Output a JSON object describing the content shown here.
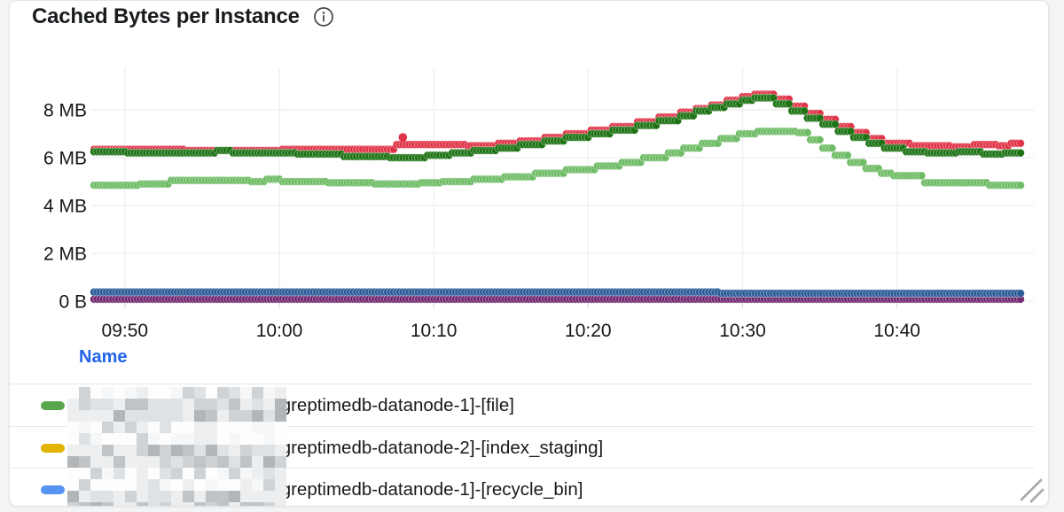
{
  "panel": {
    "title": "Cached Bytes per Instance"
  },
  "chart_data": {
    "type": "scatter",
    "title": "Cached Bytes per Instance",
    "unit": "bytes",
    "grid": true,
    "ylim_mb": [
      0,
      9.8
    ],
    "x_range": {
      "start": "09:48",
      "end": "10:48"
    },
    "y_axis": {
      "ticks": [
        {
          "v": 0,
          "label": "0 B"
        },
        {
          "v": 2,
          "label": "2 MB"
        },
        {
          "v": 4,
          "label": "4 MB"
        },
        {
          "v": 6,
          "label": "6 MB"
        },
        {
          "v": 8,
          "label": "8 MB"
        }
      ]
    },
    "x_axis": {
      "ticks": [
        {
          "t": 2,
          "label": "09:50"
        },
        {
          "t": 12,
          "label": "10:00"
        },
        {
          "t": 22,
          "label": "10:10"
        },
        {
          "t": 32,
          "label": "10:20"
        },
        {
          "t": 42,
          "label": "10:30"
        },
        {
          "t": 52,
          "label": "10:40"
        }
      ]
    },
    "series": [
      {
        "id": "series-red",
        "color": "#e03448",
        "points_min_mb": [
          [
            0,
            6.35
          ],
          [
            6,
            6.3
          ],
          [
            12,
            6.35
          ],
          [
            19.5,
            6.55
          ],
          [
            24,
            6.5
          ],
          [
            26,
            6.6
          ],
          [
            27.5,
            6.7
          ],
          [
            29,
            6.85
          ],
          [
            30.5,
            7.0
          ],
          [
            32,
            7.15
          ],
          [
            33.5,
            7.3
          ],
          [
            35,
            7.5
          ],
          [
            36.5,
            7.7
          ],
          [
            38,
            7.9
          ],
          [
            39,
            8.05
          ],
          [
            40,
            8.2
          ],
          [
            41,
            8.4
          ],
          [
            42,
            8.55
          ],
          [
            42.8,
            8.65
          ],
          [
            44.2,
            8.45
          ],
          [
            45.2,
            8.15
          ],
          [
            46.2,
            7.85
          ],
          [
            47.2,
            7.6
          ],
          [
            48.2,
            7.3
          ],
          [
            49.2,
            7.05
          ],
          [
            50.2,
            6.8
          ],
          [
            51.2,
            6.6
          ],
          [
            53,
            6.5
          ],
          [
            55.5,
            6.45
          ],
          [
            57,
            6.55
          ],
          [
            58.5,
            6.5
          ],
          [
            59.3,
            6.6
          ]
        ]
      },
      {
        "id": "series-dark-green",
        "color": "#1e7315",
        "points_min_mb": [
          [
            0,
            6.25
          ],
          [
            2,
            6.2
          ],
          [
            8,
            6.3
          ],
          [
            9,
            6.2
          ],
          [
            13,
            6.15
          ],
          [
            16,
            6.05
          ],
          [
            19,
            6.0
          ],
          [
            21.5,
            6.1
          ],
          [
            23,
            6.2
          ],
          [
            24.5,
            6.3
          ],
          [
            26,
            6.4
          ],
          [
            27.5,
            6.55
          ],
          [
            29,
            6.7
          ],
          [
            30.5,
            6.85
          ],
          [
            32,
            7.0
          ],
          [
            33.5,
            7.15
          ],
          [
            35,
            7.35
          ],
          [
            36.5,
            7.55
          ],
          [
            38,
            7.75
          ],
          [
            39,
            7.95
          ],
          [
            40,
            8.1
          ],
          [
            41,
            8.25
          ],
          [
            42,
            8.4
          ],
          [
            42.8,
            8.5
          ],
          [
            44.2,
            8.25
          ],
          [
            45.2,
            7.95
          ],
          [
            46.2,
            7.65
          ],
          [
            47.2,
            7.4
          ],
          [
            48.2,
            7.1
          ],
          [
            49.2,
            6.85
          ],
          [
            50.2,
            6.6
          ],
          [
            51.2,
            6.4
          ],
          [
            52.5,
            6.25
          ],
          [
            54,
            6.2
          ],
          [
            56,
            6.25
          ],
          [
            57.5,
            6.15
          ],
          [
            59,
            6.2
          ]
        ]
      },
      {
        "id": "series-light-green",
        "color": "#6fbc66",
        "points_min_mb": [
          [
            0,
            4.85
          ],
          [
            3,
            4.9
          ],
          [
            5,
            5.05
          ],
          [
            10,
            5.0
          ],
          [
            11,
            5.1
          ],
          [
            12,
            5.0
          ],
          [
            15,
            4.95
          ],
          [
            18,
            4.9
          ],
          [
            21,
            4.95
          ],
          [
            22.5,
            5.0
          ],
          [
            24.5,
            5.1
          ],
          [
            26.5,
            5.2
          ],
          [
            28.5,
            5.35
          ],
          [
            30.5,
            5.5
          ],
          [
            32.5,
            5.65
          ],
          [
            34,
            5.8
          ],
          [
            35.5,
            6.0
          ],
          [
            37,
            6.2
          ],
          [
            38.2,
            6.4
          ],
          [
            39.4,
            6.6
          ],
          [
            40.6,
            6.8
          ],
          [
            41.8,
            7.0
          ],
          [
            43,
            7.1
          ],
          [
            45.5,
            7.05
          ],
          [
            46.3,
            6.75
          ],
          [
            47.1,
            6.4
          ],
          [
            48,
            6.1
          ],
          [
            49,
            5.8
          ],
          [
            50,
            5.55
          ],
          [
            51,
            5.35
          ],
          [
            51.8,
            5.25
          ],
          [
            53.8,
            4.95
          ],
          [
            58,
            4.85
          ]
        ]
      },
      {
        "id": "series-purple",
        "color": "#732a72",
        "points_min_mb": [
          [
            0,
            0.08
          ]
        ]
      },
      {
        "id": "series-dark-blue",
        "color": "#2b5c97",
        "points_min_mb": [
          [
            0,
            0.38
          ],
          [
            40,
            0.38
          ],
          [
            40.5,
            0.33
          ]
        ]
      }
    ],
    "outliers": [
      {
        "series": "series-red",
        "t": 20,
        "v": 6.85
      }
    ]
  },
  "legend": {
    "header": "Name",
    "header_color": "#1f63e8",
    "rows": [
      {
        "swatch_color": "#57a64b",
        "prefix_censored": true,
        "name_suffix": "[greptimedb-datanode-1]-[file]"
      },
      {
        "swatch_color": "#e0b400",
        "prefix_censored": true,
        "name_suffix": "[greptimedb-datanode-2]-[index_staging]"
      },
      {
        "swatch_color": "#5794f2",
        "prefix_censored": true,
        "name_suffix": "[greptimedb-datanode-1]-[recycle_bin]"
      }
    ]
  }
}
